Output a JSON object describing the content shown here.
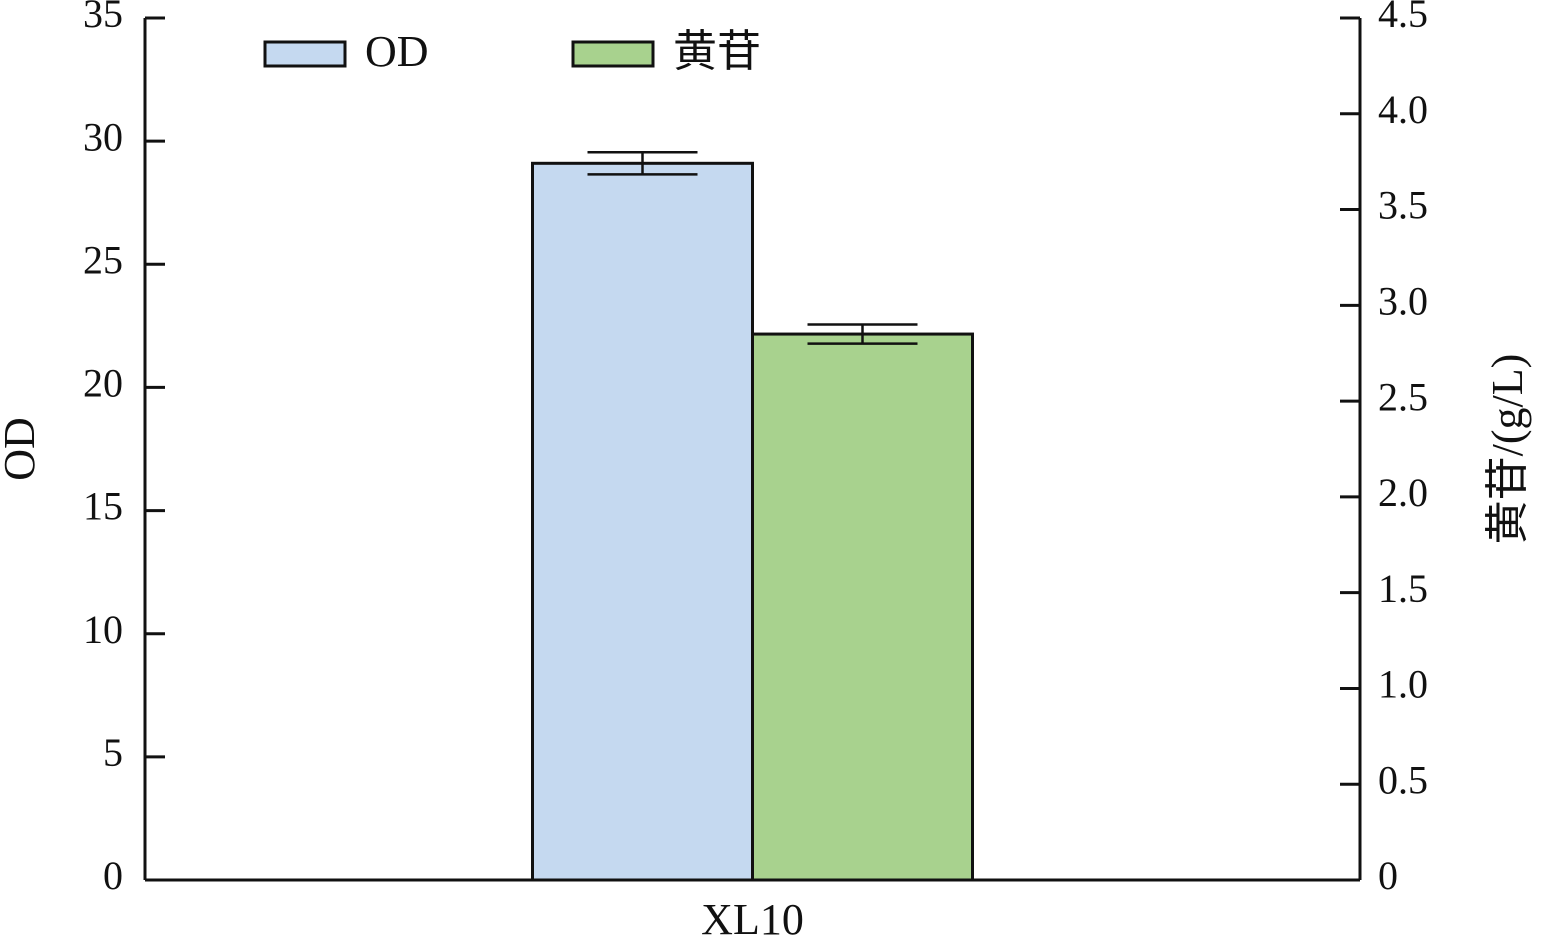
{
  "chart_data": {
    "type": "bar",
    "categories": [
      "XL10"
    ],
    "ylabel": "OD",
    "y2label": "黄苷/(g/L)",
    "ylim": [
      0,
      35
    ],
    "yticks": [
      0,
      5,
      10,
      15,
      20,
      25,
      30,
      35
    ],
    "y2lim": [
      0,
      4.5
    ],
    "y2ticks": [
      0,
      0.5,
      {
        "value": 1,
        "label": "1.0"
      },
      1.5,
      {
        "value": 2,
        "label": "2.0"
      },
      2.5,
      {
        "value": 3,
        "label": "3.0"
      },
      3.5,
      {
        "value": 4,
        "label": "4.0"
      },
      4.5
    ],
    "legend": "top-left",
    "series": [
      {
        "name": "OD",
        "color": "#c5d9f0",
        "values": [
          29.1
        ],
        "errors": [
          0.45
        ]
      },
      {
        "name": "黄苷",
        "color": "#a8d28e",
        "values": [
          2.85
        ],
        "errors": [
          0.05
        ],
        "axis": "y2"
      }
    ]
  }
}
